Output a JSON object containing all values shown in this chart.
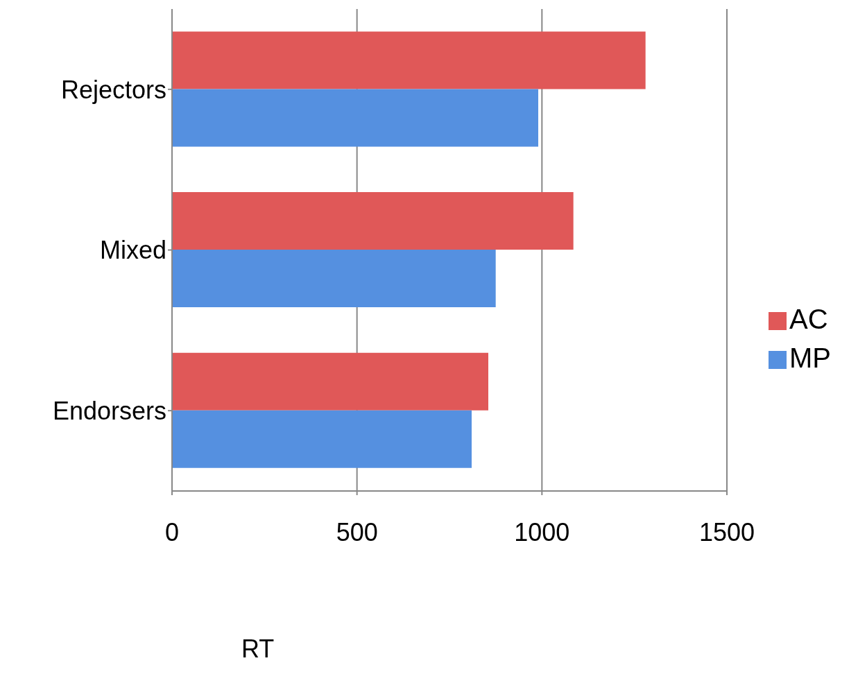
{
  "chart_data": {
    "type": "bar",
    "orientation": "horizontal",
    "xlabel": "RT",
    "categories": [
      "Rejectors",
      "Mixed",
      "Endorsers"
    ],
    "series": [
      {
        "name": "AC",
        "color": "#e05858",
        "values": [
          1280,
          1085,
          855
        ]
      },
      {
        "name": "MP",
        "color": "#5590e0",
        "values": [
          990,
          875,
          810
        ]
      }
    ],
    "xlim": [
      0,
      1500
    ],
    "xticks": [
      0,
      500,
      1000,
      1500
    ],
    "grid": "x",
    "legend": "right"
  }
}
